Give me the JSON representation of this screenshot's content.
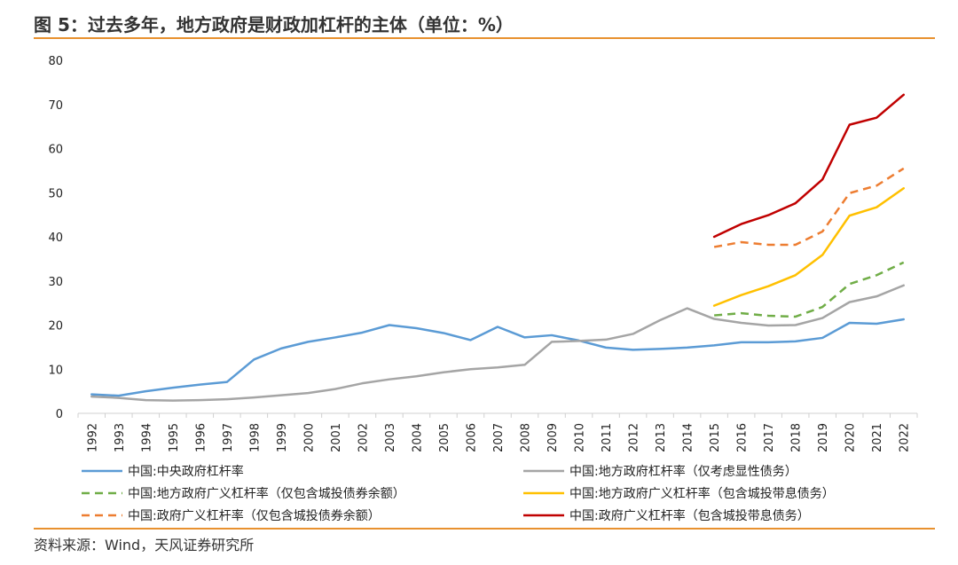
{
  "header": {
    "title": "图 5：过去多年，地方政府是财政加杠杆的主体（单位：%）"
  },
  "footer": {
    "source": "资料来源：Wind，天风证券研究所"
  },
  "chart_data": {
    "type": "line",
    "title": "",
    "xlabel": "",
    "ylabel": "",
    "ylim": [
      0,
      80
    ],
    "yticks": [
      0,
      10,
      20,
      30,
      40,
      50,
      60,
      70,
      80
    ],
    "grid": false,
    "legend_position": "bottom",
    "categories": [
      "1992",
      "1993",
      "1994",
      "1995",
      "1996",
      "1997",
      "1998",
      "1999",
      "2000",
      "2001",
      "2002",
      "2003",
      "2004",
      "2005",
      "2006",
      "2007",
      "2008",
      "2009",
      "2010",
      "2011",
      "2012",
      "2013",
      "2014",
      "2015",
      "2016",
      "2017",
      "2018",
      "2019",
      "2020",
      "2021",
      "2022"
    ],
    "series": [
      {
        "name": "中国:中央政府杠杆率",
        "color": "#5b9bd5",
        "dash": "solid",
        "values": [
          4.3,
          4.0,
          5.0,
          5.8,
          6.5,
          7.1,
          12.2,
          14.7,
          16.2,
          17.2,
          18.3,
          20.0,
          19.3,
          18.2,
          16.6,
          19.6,
          17.2,
          17.7,
          16.5,
          14.9,
          14.4,
          14.6,
          14.9,
          15.4,
          16.1,
          16.1,
          16.3,
          17.1,
          20.5,
          20.3,
          21.3
        ]
      },
      {
        "name": "中国:地方政府杠杆率（仅考虑显性债务）",
        "color": "#a5a5a5",
        "dash": "solid",
        "values": [
          3.8,
          3.5,
          3.0,
          2.9,
          3.0,
          3.2,
          3.6,
          4.1,
          4.6,
          5.5,
          6.8,
          7.7,
          8.4,
          9.3,
          10.0,
          10.4,
          11.0,
          16.2,
          16.4,
          16.7,
          18.0,
          21.1,
          23.8,
          21.4,
          20.5,
          19.9,
          20.0,
          21.6,
          25.2,
          26.5,
          29.0
        ]
      },
      {
        "name": "中国:地方政府广义杠杆率（仅包含城投债券余额）",
        "color": "#70ad47",
        "dash": "dashed",
        "values": [
          null,
          null,
          null,
          null,
          null,
          null,
          null,
          null,
          null,
          null,
          null,
          null,
          null,
          null,
          null,
          null,
          null,
          null,
          null,
          null,
          null,
          null,
          null,
          22.2,
          22.7,
          22.1,
          21.9,
          24.1,
          29.3,
          31.3,
          34.2
        ]
      },
      {
        "name": "中国:地方政府广义杠杆率（包含城投带息债务）",
        "color": "#ffc000",
        "dash": "solid",
        "values": [
          null,
          null,
          null,
          null,
          null,
          null,
          null,
          null,
          null,
          null,
          null,
          null,
          null,
          null,
          null,
          null,
          null,
          null,
          null,
          null,
          null,
          null,
          null,
          24.4,
          26.8,
          28.8,
          31.3,
          35.9,
          44.8,
          46.7,
          51.0
        ]
      },
      {
        "name": "中国:政府广义杠杆率（仅包含城投债券余额）",
        "color": "#ed7d31",
        "dash": "dashed",
        "values": [
          null,
          null,
          null,
          null,
          null,
          null,
          null,
          null,
          null,
          null,
          null,
          null,
          null,
          null,
          null,
          null,
          null,
          null,
          null,
          null,
          null,
          null,
          null,
          37.7,
          38.8,
          38.2,
          38.2,
          41.2,
          49.9,
          51.6,
          55.5
        ]
      },
      {
        "name": "中国:政府广义杠杆率（包含城投带息债务）",
        "color": "#c00000",
        "dash": "solid",
        "values": [
          null,
          null,
          null,
          null,
          null,
          null,
          null,
          null,
          null,
          null,
          null,
          null,
          null,
          null,
          null,
          null,
          null,
          null,
          null,
          null,
          null,
          null,
          null,
          40.0,
          42.9,
          44.9,
          47.6,
          53.0,
          65.4,
          67.0,
          72.2
        ]
      }
    ]
  }
}
